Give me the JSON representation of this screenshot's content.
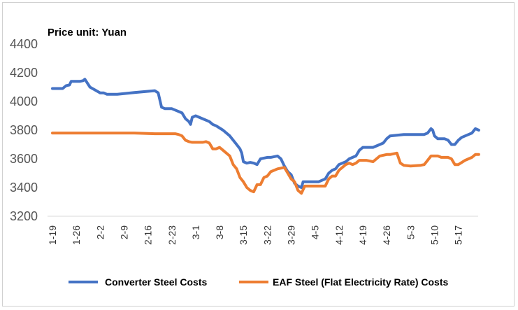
{
  "chart_data": {
    "type": "line",
    "title": "",
    "annotation": "Price unit: Yuan",
    "xlabel": "",
    "ylabel": "",
    "ylim": [
      3200,
      4400
    ],
    "yticks": [
      3200,
      3400,
      3600,
      3800,
      4000,
      4200,
      4400
    ],
    "grid": false,
    "legend_position": "bottom",
    "x_tick_labels": [
      "1-19",
      "1-26",
      "2-2",
      "2-9",
      "2-16",
      "2-23",
      "3-1",
      "3-8",
      "3-15",
      "3-22",
      "3-29",
      "4-5",
      "4-12",
      "4-19",
      "4-26",
      "5-3",
      "5-10",
      "5-17"
    ],
    "x_day_index": [
      0,
      7,
      14,
      21,
      28,
      35,
      42,
      49,
      56,
      63,
      70,
      77,
      84,
      91,
      98,
      105,
      112,
      119
    ],
    "x_range": [
      0,
      124
    ],
    "series": [
      {
        "name": "Converter Steel Costs",
        "color": "#4472C4",
        "points": [
          [
            0,
            4090
          ],
          [
            3,
            4090
          ],
          [
            4,
            4110
          ],
          [
            5,
            4115
          ],
          [
            5.5,
            4140
          ],
          [
            8,
            4140
          ],
          [
            9,
            4145
          ],
          [
            9.5,
            4155
          ],
          [
            11,
            4100
          ],
          [
            14,
            4060
          ],
          [
            15,
            4060
          ],
          [
            16,
            4050
          ],
          [
            19,
            4050
          ],
          [
            21,
            4055
          ],
          [
            24,
            4062
          ],
          [
            30,
            4075
          ],
          [
            31,
            4060
          ],
          [
            32,
            3960
          ],
          [
            33,
            3950
          ],
          [
            35,
            3950
          ],
          [
            38,
            3920
          ],
          [
            39,
            3880
          ],
          [
            40,
            3860
          ],
          [
            40.5,
            3840
          ],
          [
            41,
            3890
          ],
          [
            42,
            3900
          ],
          [
            44,
            3880
          ],
          [
            46,
            3860
          ],
          [
            47,
            3840
          ],
          [
            48,
            3830
          ],
          [
            50,
            3800
          ],
          [
            52,
            3760
          ],
          [
            54,
            3700
          ],
          [
            55,
            3670
          ],
          [
            55.5,
            3640
          ],
          [
            56,
            3580
          ],
          [
            57,
            3570
          ],
          [
            58,
            3575
          ],
          [
            59,
            3570
          ],
          [
            60,
            3560
          ],
          [
            61,
            3600
          ],
          [
            63,
            3610
          ],
          [
            64,
            3610
          ],
          [
            66,
            3620
          ],
          [
            67,
            3600
          ],
          [
            68,
            3550
          ],
          [
            69,
            3510
          ],
          [
            70,
            3490
          ],
          [
            71,
            3430
          ],
          [
            72,
            3410
          ],
          [
            73,
            3400
          ],
          [
            73.5,
            3440
          ],
          [
            76,
            3440
          ],
          [
            77,
            3440
          ],
          [
            78,
            3440
          ],
          [
            80,
            3460
          ],
          [
            81,
            3500
          ],
          [
            82,
            3520
          ],
          [
            83,
            3530
          ],
          [
            84,
            3560
          ],
          [
            86,
            3580
          ],
          [
            87,
            3600
          ],
          [
            88,
            3610
          ],
          [
            89,
            3620
          ],
          [
            90,
            3660
          ],
          [
            91,
            3680
          ],
          [
            92,
            3680
          ],
          [
            94,
            3680
          ],
          [
            96,
            3700
          ],
          [
            97,
            3710
          ],
          [
            98,
            3740
          ],
          [
            99,
            3760
          ],
          [
            103,
            3770
          ],
          [
            109,
            3770
          ],
          [
            110,
            3780
          ],
          [
            111,
            3810
          ],
          [
            111.5,
            3800
          ],
          [
            112,
            3760
          ],
          [
            113,
            3740
          ],
          [
            115,
            3740
          ],
          [
            116,
            3730
          ],
          [
            117,
            3700
          ],
          [
            118,
            3700
          ],
          [
            119,
            3730
          ],
          [
            120,
            3750
          ],
          [
            122,
            3770
          ],
          [
            123,
            3780
          ],
          [
            124,
            3810
          ],
          [
            125,
            3800
          ]
        ]
      },
      {
        "name": "EAF Steel (Flat Electricity Rate) Costs",
        "color": "#ED7D31",
        "points": [
          [
            0,
            3780
          ],
          [
            12,
            3780
          ],
          [
            24,
            3780
          ],
          [
            30,
            3775
          ],
          [
            36,
            3775
          ],
          [
            37,
            3770
          ],
          [
            38,
            3760
          ],
          [
            39,
            3730
          ],
          [
            40,
            3720
          ],
          [
            41,
            3715
          ],
          [
            44,
            3715
          ],
          [
            45,
            3720
          ],
          [
            46,
            3710
          ],
          [
            47,
            3670
          ],
          [
            48,
            3670
          ],
          [
            49,
            3680
          ],
          [
            50,
            3660
          ],
          [
            52,
            3620
          ],
          [
            53,
            3560
          ],
          [
            54,
            3530
          ],
          [
            55,
            3470
          ],
          [
            56,
            3440
          ],
          [
            57,
            3400
          ],
          [
            58,
            3380
          ],
          [
            59,
            3370
          ],
          [
            60,
            3420
          ],
          [
            61,
            3420
          ],
          [
            62,
            3470
          ],
          [
            63,
            3480
          ],
          [
            64,
            3510
          ],
          [
            66,
            3530
          ],
          [
            68,
            3540
          ],
          [
            69,
            3500
          ],
          [
            70,
            3460
          ],
          [
            71,
            3440
          ],
          [
            72,
            3380
          ],
          [
            73,
            3360
          ],
          [
            74,
            3410
          ],
          [
            76,
            3410
          ],
          [
            79,
            3410
          ],
          [
            80,
            3410
          ],
          [
            81,
            3460
          ],
          [
            82,
            3480
          ],
          [
            83,
            3480
          ],
          [
            84,
            3520
          ],
          [
            86,
            3560
          ],
          [
            87,
            3570
          ],
          [
            88,
            3560
          ],
          [
            89,
            3570
          ],
          [
            90,
            3590
          ],
          [
            92,
            3590
          ],
          [
            94,
            3580
          ],
          [
            95,
            3600
          ],
          [
            96,
            3620
          ],
          [
            98,
            3630
          ],
          [
            99,
            3630
          ],
          [
            100,
            3635
          ],
          [
            101,
            3640
          ],
          [
            102,
            3570
          ],
          [
            103,
            3555
          ],
          [
            105,
            3550
          ],
          [
            108,
            3555
          ],
          [
            109,
            3560
          ],
          [
            110,
            3590
          ],
          [
            111,
            3620
          ],
          [
            113,
            3620
          ],
          [
            114,
            3610
          ],
          [
            116,
            3610
          ],
          [
            117,
            3600
          ],
          [
            118,
            3560
          ],
          [
            119,
            3560
          ],
          [
            121,
            3590
          ],
          [
            122,
            3600
          ],
          [
            123,
            3610
          ],
          [
            124,
            3630
          ],
          [
            125,
            3630
          ]
        ]
      }
    ]
  }
}
